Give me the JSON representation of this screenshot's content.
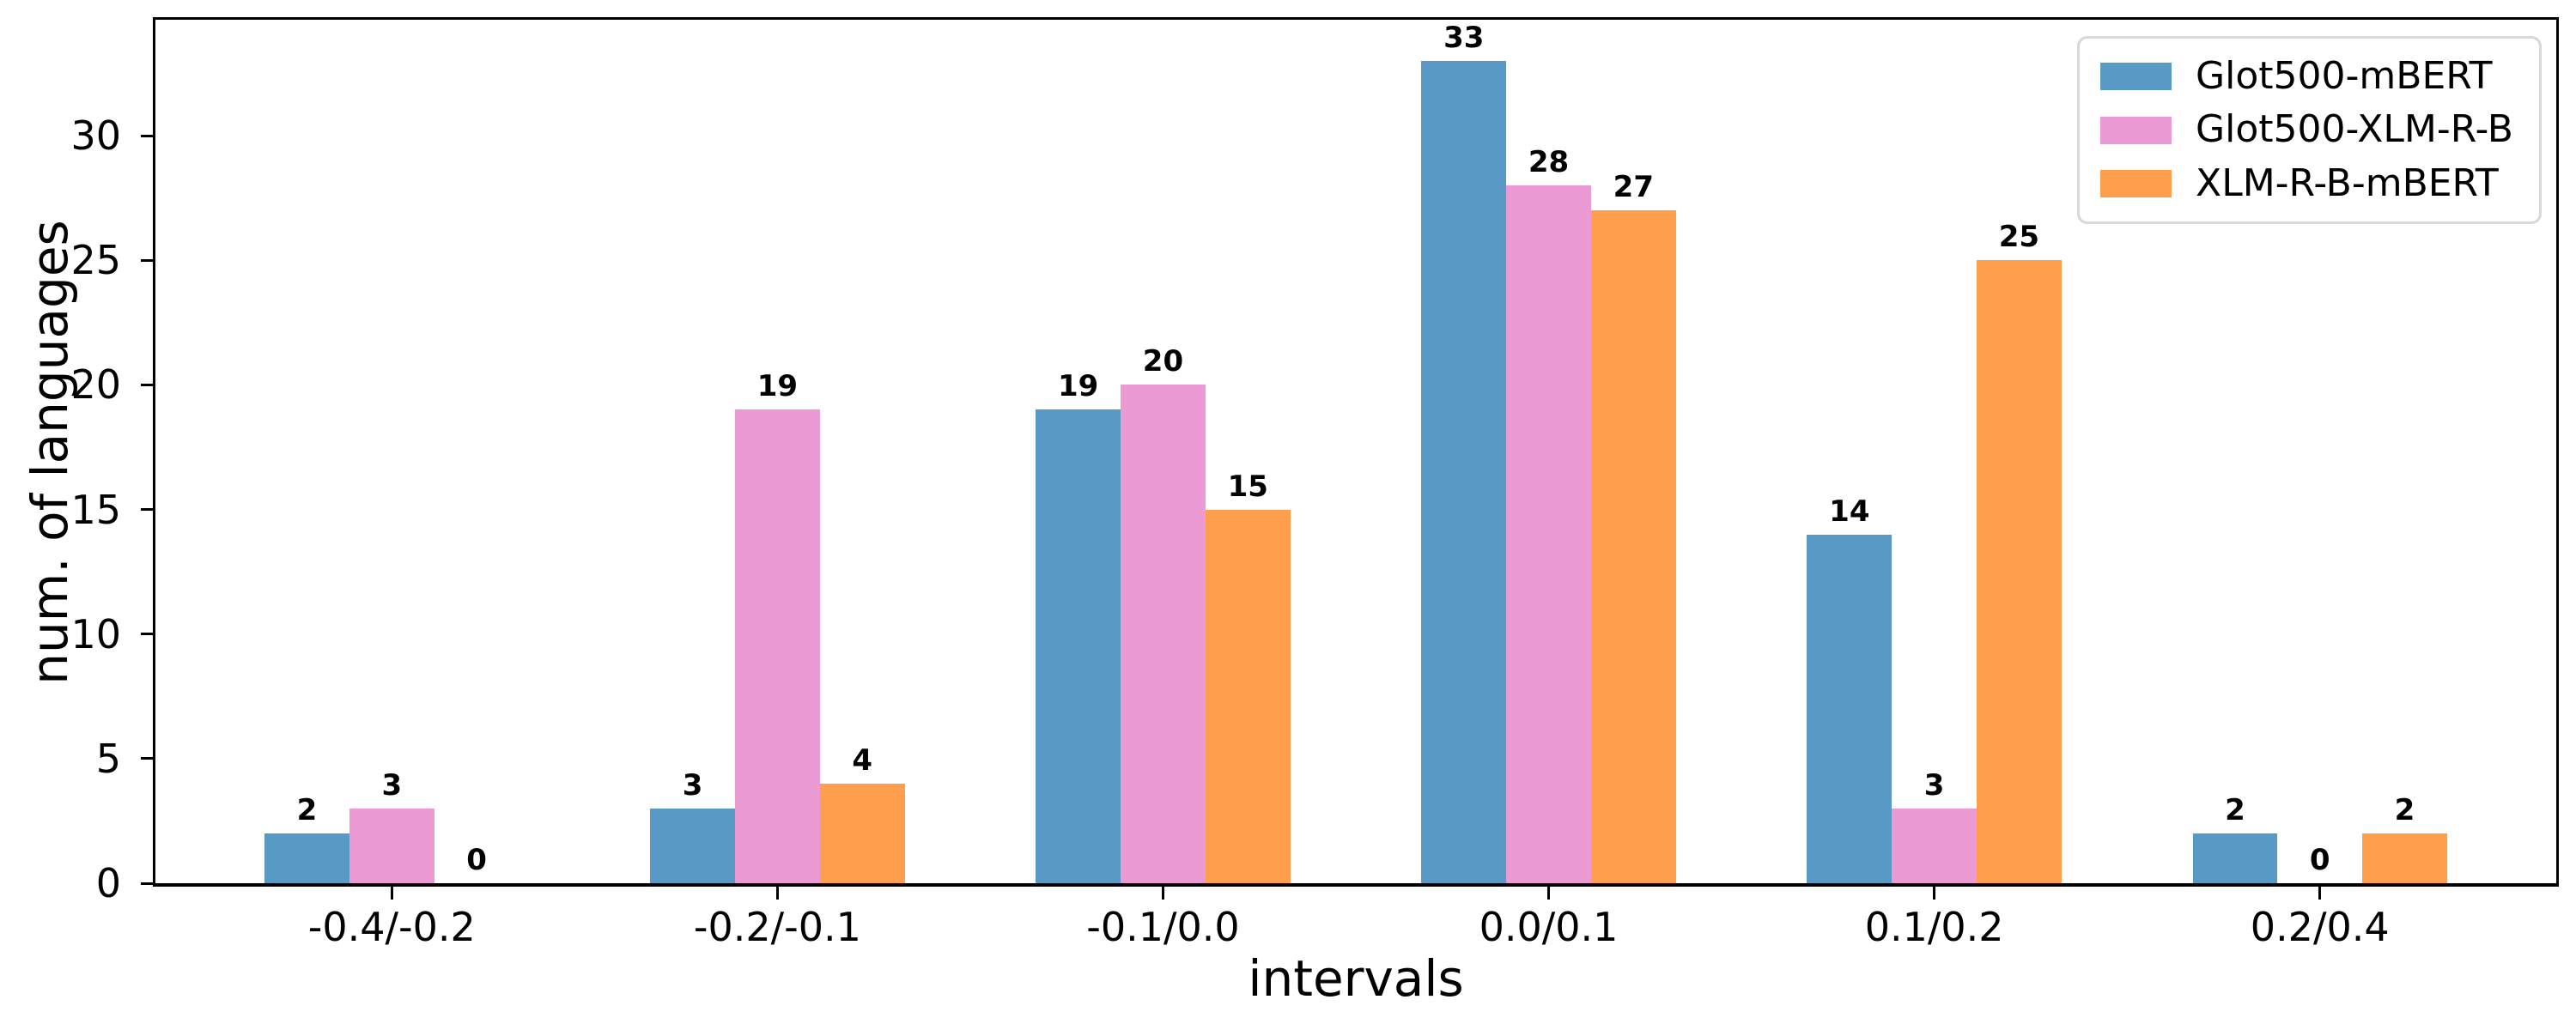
{
  "chart_data": {
    "type": "bar",
    "title": "",
    "xlabel": "intervals",
    "ylabel": "num. of languages",
    "categories": [
      "-0.4/-0.2",
      "-0.2/-0.1",
      "-0.1/0.0",
      "0.0/0.1",
      "0.1/0.2",
      "0.2/0.4"
    ],
    "series": [
      {
        "name": "Glot500-mBERT",
        "color": "#5899C6",
        "values": [
          2,
          3,
          19,
          33,
          14,
          2
        ]
      },
      {
        "name": "Glot500-XLM-R-B",
        "color": "#EC9AD3",
        "values": [
          3,
          19,
          20,
          28,
          3,
          0
        ]
      },
      {
        "name": "XLM-R-B-mBERT",
        "color": "#FF9F4D",
        "values": [
          0,
          4,
          15,
          27,
          25,
          2
        ]
      }
    ],
    "bar_value_labels_shown": true,
    "y_ticks": [
      0,
      5,
      10,
      15,
      20,
      25,
      30
    ],
    "ylim": [
      0,
      34.65
    ],
    "grid": false,
    "legend_position": "upper right",
    "axis_color": "#000000",
    "legend_border_color": "#d8d8d8"
  }
}
